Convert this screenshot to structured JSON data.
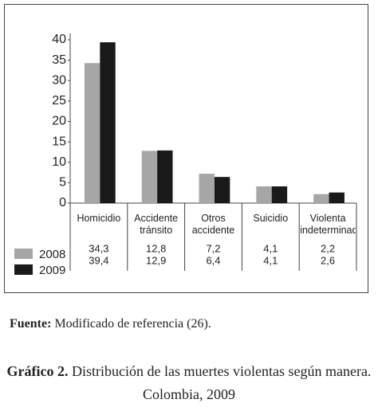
{
  "chart_data": {
    "type": "bar",
    "categories": [
      "Homicidio",
      "Accidente tránsito",
      "Otros accidente",
      "Suicidio",
      "Violenta indeterminada"
    ],
    "series": [
      {
        "name": "2008",
        "color": "#a6a6a6",
        "values": [
          34.3,
          12.8,
          7.2,
          4.1,
          2.2
        ],
        "value_labels": [
          "34,3",
          "12,8",
          "7,2",
          "4,1",
          "2,2"
        ]
      },
      {
        "name": "2009",
        "color": "#1a1a1a",
        "values": [
          39.4,
          12.9,
          6.4,
          4.1,
          2.6
        ],
        "value_labels": [
          "39,4",
          "12,9",
          "6,4",
          "4,1",
          "2,6"
        ]
      }
    ],
    "ylim": [
      0,
      40
    ],
    "yticks": [
      0,
      5,
      10,
      15,
      20,
      25,
      30,
      35,
      40
    ],
    "source_label": "Fuente:",
    "source": "Modificado de referencia (26).",
    "caption_label": "Gráfico 2.",
    "caption": "Distribución de las muertes violentas según manera. Colombia, 2009"
  }
}
